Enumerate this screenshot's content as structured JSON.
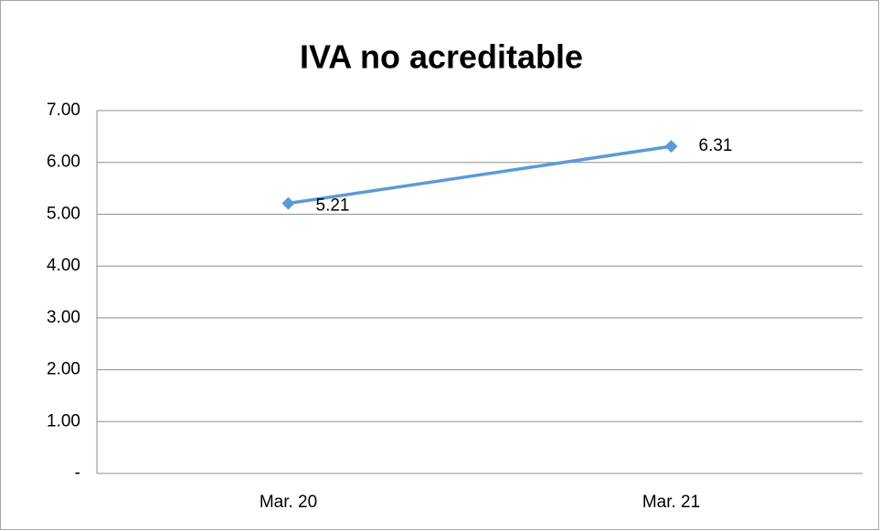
{
  "chart_data": {
    "type": "line",
    "title": "IVA no acreditable",
    "categories": [
      "Mar. 20",
      "Mar. 21"
    ],
    "values": [
      5.21,
      6.31
    ],
    "color": "#5b9bd5",
    "ylim": [
      0,
      7
    ],
    "yticks": [
      {
        "value": 0,
        "label": "-"
      },
      {
        "value": 1,
        "label": "1.00"
      },
      {
        "value": 2,
        "label": "2.00"
      },
      {
        "value": 3,
        "label": "3.00"
      },
      {
        "value": 4,
        "label": "4.00"
      },
      {
        "value": 5,
        "label": "5.00"
      },
      {
        "value": 6,
        "label": "6.00"
      },
      {
        "value": 7,
        "label": "7.00"
      }
    ],
    "grid": true
  }
}
